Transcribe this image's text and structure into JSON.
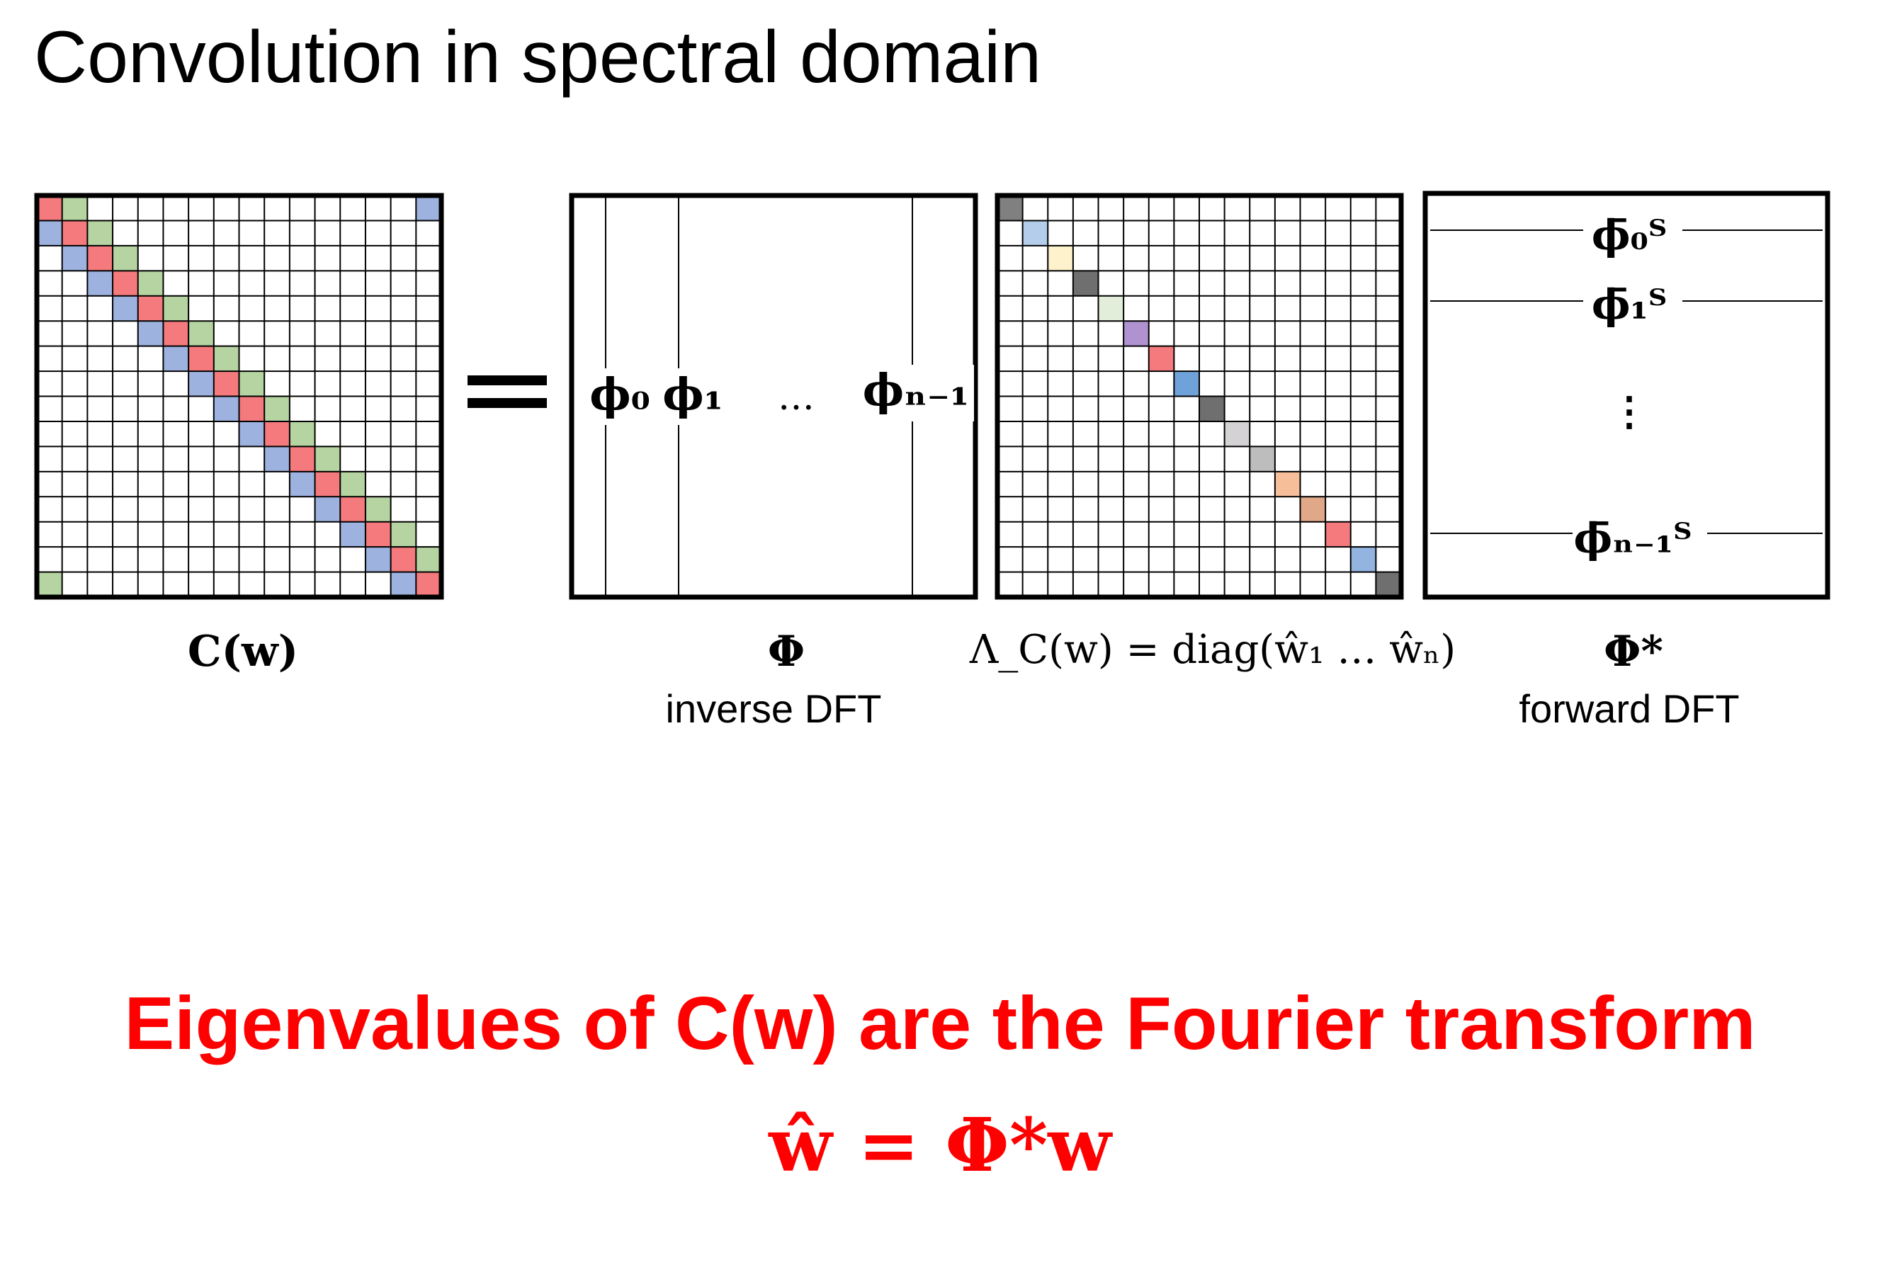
{
  "title": "Convolution in spectral domain",
  "equals_sign": "=",
  "matrix_c": {
    "label": "C(w)",
    "size": 16,
    "band_colors": {
      "main": "#f47a7d",
      "lower": "#9db2df",
      "upper": "#b5d4a1"
    }
  },
  "matrix_phi": {
    "column_labels": [
      "ϕ₀",
      "ϕ₁",
      "…",
      "ϕₙ₋₁"
    ],
    "symbol": "Φ",
    "caption": "inverse DFT"
  },
  "matrix_lambda": {
    "size": 16,
    "diagonal_colors": [
      "#808080",
      "#b4cdeb",
      "#fdf2cb",
      "#6f6f6f",
      "#e2eed9",
      "#b192d1",
      "#f47a7d",
      "#6ea2d8",
      "#6f6f6f",
      "#d5d2d6",
      "#bdbdbd",
      "#f6be99",
      "#e1a789",
      "#f47a7d",
      "#93b3e0",
      "#6f6f6f"
    ],
    "caption": "Λ_C(w) = diag(ŵ₁ … ŵₙ)"
  },
  "matrix_phi_star": {
    "row_labels": [
      "ϕ̄₀ᵀ",
      "ϕ̄₁ᵀ",
      "⋮",
      "ϕ̄ₙ₋₁ᵀ"
    ],
    "symbol": "Φ*",
    "caption": "forward DFT"
  },
  "statement": {
    "line1": "Eigenvalues of C(w) are the Fourier transform",
    "line2": "ŵ = Φ*w",
    "color": "#ff0000"
  }
}
